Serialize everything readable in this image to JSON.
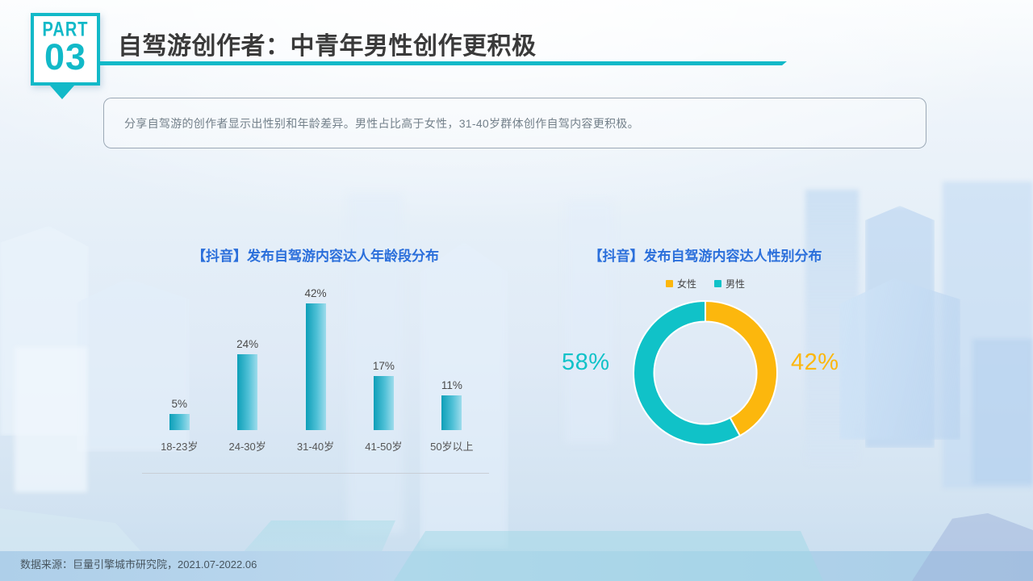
{
  "header": {
    "part_label": "PART",
    "part_number": "03",
    "title": "自驾游创作者：中青年男性创作更积极"
  },
  "summary": "分享自驾游的创作者显示出性别和年龄差异。男性占比高于女性，31-40岁群体创作自驾内容更积极。",
  "footer": {
    "source": "数据来源：巨量引擎城市研究院，2021.07-2022.06"
  },
  "colors": {
    "accent_teal": "#12b9c8",
    "chart_title_blue": "#2b6fdb",
    "title_text": "#3a3a3a",
    "summary_text": "#73808a",
    "source_text": "#47555f",
    "axis_line": "#c9ced6",
    "bar_label": "#4a4a4a"
  },
  "chart_data": [
    {
      "type": "bar",
      "title": "【抖音】发布自驾游内容达人年龄段分布",
      "categories": [
        "18-23岁",
        "24-30岁",
        "31-40岁",
        "41-50岁",
        "50岁以上"
      ],
      "values": [
        5,
        24,
        42,
        17,
        11
      ],
      "value_suffix": "%",
      "ylim": [
        0,
        45
      ],
      "grid": false,
      "legend_position": "none",
      "bar_color_start": "#0d9fb8",
      "bar_color_mid": "#4fc0d6",
      "bar_color_end": "#9edcec"
    },
    {
      "type": "pie",
      "donut": true,
      "title": "【抖音】发布自驾游内容达人性别分布",
      "legend_position": "top",
      "slices": [
        {
          "label": "女性",
          "value": 42,
          "color": "#fcb70d",
          "callout": "42%",
          "callout_side": "right"
        },
        {
          "label": "男性",
          "value": 58,
          "color": "#10c2c8",
          "callout": "58%",
          "callout_side": "left"
        }
      ],
      "start_angle_deg": 0,
      "direction": "clockwise"
    }
  ]
}
